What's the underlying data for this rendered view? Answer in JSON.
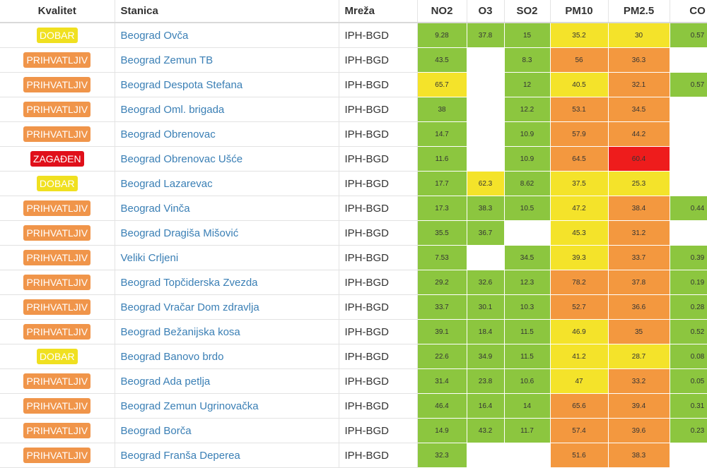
{
  "headers": {
    "quality": "Kvalitet",
    "station": "Stanica",
    "network": "Mreža",
    "no2": "NO2",
    "o3": "O3",
    "so2": "SO2",
    "pm10": "PM10",
    "pm25": "PM2.5",
    "co": "CO"
  },
  "colors": {
    "green": "#8cc63f",
    "yellow": "#f4e32a",
    "orange": "#f3983f",
    "red": "#ee1c1c",
    "badge_dobar": "#f0e020",
    "badge_prihvatljiv": "#f0954a",
    "badge_zagaden": "#e0101a",
    "link": "#3a7fb5"
  },
  "rows": [
    {
      "quality": "DOBAR",
      "quality_level": "dobar",
      "station": "Beograd Ovča",
      "network": "IPH-BGD",
      "no2": {
        "v": "9.28",
        "c": "green"
      },
      "o3": {
        "v": "37.8",
        "c": "green"
      },
      "so2": {
        "v": "15",
        "c": "green"
      },
      "pm10": {
        "v": "35.2",
        "c": "yellow"
      },
      "pm25": {
        "v": "30",
        "c": "yellow"
      },
      "co": {
        "v": "0.57",
        "c": "green"
      }
    },
    {
      "quality": "PRIHVATLJIV",
      "quality_level": "prihvatljiv",
      "station": "Beograd Zemun TB",
      "network": "IPH-BGD",
      "no2": {
        "v": "43.5",
        "c": "green"
      },
      "o3": {
        "v": "",
        "c": "none"
      },
      "so2": {
        "v": "8.3",
        "c": "green"
      },
      "pm10": {
        "v": "56",
        "c": "orange"
      },
      "pm25": {
        "v": "36.3",
        "c": "orange"
      },
      "co": {
        "v": "",
        "c": "none"
      }
    },
    {
      "quality": "PRIHVATLJIV",
      "quality_level": "prihvatljiv",
      "station": "Beograd Despota Stefana",
      "network": "IPH-BGD",
      "no2": {
        "v": "65.7",
        "c": "yellow"
      },
      "o3": {
        "v": "",
        "c": "none"
      },
      "so2": {
        "v": "12",
        "c": "green"
      },
      "pm10": {
        "v": "40.5",
        "c": "yellow"
      },
      "pm25": {
        "v": "32.1",
        "c": "orange"
      },
      "co": {
        "v": "0.57",
        "c": "green"
      }
    },
    {
      "quality": "PRIHVATLJIV",
      "quality_level": "prihvatljiv",
      "station": "Beograd Oml. brigada",
      "network": "IPH-BGD",
      "no2": {
        "v": "38",
        "c": "green"
      },
      "o3": {
        "v": "",
        "c": "none"
      },
      "so2": {
        "v": "12.2",
        "c": "green"
      },
      "pm10": {
        "v": "53.1",
        "c": "orange"
      },
      "pm25": {
        "v": "34.5",
        "c": "orange"
      },
      "co": {
        "v": "",
        "c": "none"
      }
    },
    {
      "quality": "PRIHVATLJIV",
      "quality_level": "prihvatljiv",
      "station": "Beograd Obrenovac",
      "network": "IPH-BGD",
      "no2": {
        "v": "14.7",
        "c": "green"
      },
      "o3": {
        "v": "",
        "c": "none"
      },
      "so2": {
        "v": "10.9",
        "c": "green"
      },
      "pm10": {
        "v": "57.9",
        "c": "orange"
      },
      "pm25": {
        "v": "44.2",
        "c": "orange"
      },
      "co": {
        "v": "",
        "c": "none"
      }
    },
    {
      "quality": "ZAGAĐEN",
      "quality_level": "zagaden",
      "station": "Beograd Obrenovac Ušće",
      "network": "IPH-BGD",
      "no2": {
        "v": "11.6",
        "c": "green"
      },
      "o3": {
        "v": "",
        "c": "none"
      },
      "so2": {
        "v": "10.9",
        "c": "green"
      },
      "pm10": {
        "v": "64.5",
        "c": "orange"
      },
      "pm25": {
        "v": "60.4",
        "c": "red"
      },
      "co": {
        "v": "",
        "c": "none"
      }
    },
    {
      "quality": "DOBAR",
      "quality_level": "dobar",
      "station": "Beograd Lazarevac",
      "network": "IPH-BGD",
      "no2": {
        "v": "17.7",
        "c": "green"
      },
      "o3": {
        "v": "62.3",
        "c": "yellow"
      },
      "so2": {
        "v": "8.62",
        "c": "green"
      },
      "pm10": {
        "v": "37.5",
        "c": "yellow"
      },
      "pm25": {
        "v": "25.3",
        "c": "yellow"
      },
      "co": {
        "v": "",
        "c": "none"
      }
    },
    {
      "quality": "PRIHVATLJIV",
      "quality_level": "prihvatljiv",
      "station": "Beograd Vinča",
      "network": "IPH-BGD",
      "no2": {
        "v": "17.3",
        "c": "green"
      },
      "o3": {
        "v": "38.3",
        "c": "green"
      },
      "so2": {
        "v": "10.5",
        "c": "green"
      },
      "pm10": {
        "v": "47.2",
        "c": "yellow"
      },
      "pm25": {
        "v": "38.4",
        "c": "orange"
      },
      "co": {
        "v": "0.44",
        "c": "green"
      }
    },
    {
      "quality": "PRIHVATLJIV",
      "quality_level": "prihvatljiv",
      "station": "Beograd Dragiša Mišović",
      "network": "IPH-BGD",
      "no2": {
        "v": "35.5",
        "c": "green"
      },
      "o3": {
        "v": "36.7",
        "c": "green"
      },
      "so2": {
        "v": "",
        "c": "none"
      },
      "pm10": {
        "v": "45.3",
        "c": "yellow"
      },
      "pm25": {
        "v": "31.2",
        "c": "orange"
      },
      "co": {
        "v": "",
        "c": "none"
      }
    },
    {
      "quality": "PRIHVATLJIV",
      "quality_level": "prihvatljiv",
      "station": "Veliki Crljeni",
      "network": "IPH-BGD",
      "no2": {
        "v": "7.53",
        "c": "green"
      },
      "o3": {
        "v": "",
        "c": "none"
      },
      "so2": {
        "v": "34.5",
        "c": "green"
      },
      "pm10": {
        "v": "39.3",
        "c": "yellow"
      },
      "pm25": {
        "v": "33.7",
        "c": "orange"
      },
      "co": {
        "v": "0.39",
        "c": "green"
      }
    },
    {
      "quality": "PRIHVATLJIV",
      "quality_level": "prihvatljiv",
      "station": "Beograd Topčiderska Zvezda",
      "network": "IPH-BGD",
      "no2": {
        "v": "29.2",
        "c": "green"
      },
      "o3": {
        "v": "32.6",
        "c": "green"
      },
      "so2": {
        "v": "12.3",
        "c": "green"
      },
      "pm10": {
        "v": "78.2",
        "c": "orange"
      },
      "pm25": {
        "v": "37.8",
        "c": "orange"
      },
      "co": {
        "v": "0.19",
        "c": "green"
      }
    },
    {
      "quality": "PRIHVATLJIV",
      "quality_level": "prihvatljiv",
      "station": "Beograd Vračar Dom zdravlja",
      "network": "IPH-BGD",
      "no2": {
        "v": "33.7",
        "c": "green"
      },
      "o3": {
        "v": "30.1",
        "c": "green"
      },
      "so2": {
        "v": "10.3",
        "c": "green"
      },
      "pm10": {
        "v": "52.7",
        "c": "orange"
      },
      "pm25": {
        "v": "36.6",
        "c": "orange"
      },
      "co": {
        "v": "0.28",
        "c": "green"
      }
    },
    {
      "quality": "PRIHVATLJIV",
      "quality_level": "prihvatljiv",
      "station": "Beograd Bežanijska kosa",
      "network": "IPH-BGD",
      "no2": {
        "v": "39.1",
        "c": "green"
      },
      "o3": {
        "v": "18.4",
        "c": "green"
      },
      "so2": {
        "v": "11.5",
        "c": "green"
      },
      "pm10": {
        "v": "46.9",
        "c": "yellow"
      },
      "pm25": {
        "v": "35",
        "c": "orange"
      },
      "co": {
        "v": "0.52",
        "c": "green"
      }
    },
    {
      "quality": "DOBAR",
      "quality_level": "dobar",
      "station": "Beograd Banovo brdo",
      "network": "IPH-BGD",
      "no2": {
        "v": "22.6",
        "c": "green"
      },
      "o3": {
        "v": "34.9",
        "c": "green"
      },
      "so2": {
        "v": "11.5",
        "c": "green"
      },
      "pm10": {
        "v": "41.2",
        "c": "yellow"
      },
      "pm25": {
        "v": "28.7",
        "c": "yellow"
      },
      "co": {
        "v": "0.08",
        "c": "green"
      }
    },
    {
      "quality": "PRIHVATLJIV",
      "quality_level": "prihvatljiv",
      "station": "Beograd Ada petlja",
      "network": "IPH-BGD",
      "no2": {
        "v": "31.4",
        "c": "green"
      },
      "o3": {
        "v": "23.8",
        "c": "green"
      },
      "so2": {
        "v": "10.6",
        "c": "green"
      },
      "pm10": {
        "v": "47",
        "c": "yellow"
      },
      "pm25": {
        "v": "33.2",
        "c": "orange"
      },
      "co": {
        "v": "0.05",
        "c": "green"
      }
    },
    {
      "quality": "PRIHVATLJIV",
      "quality_level": "prihvatljiv",
      "station": "Beograd Zemun Ugrinovačka",
      "network": "IPH-BGD",
      "no2": {
        "v": "46.4",
        "c": "green"
      },
      "o3": {
        "v": "16.4",
        "c": "green"
      },
      "so2": {
        "v": "14",
        "c": "green"
      },
      "pm10": {
        "v": "65.6",
        "c": "orange"
      },
      "pm25": {
        "v": "39.4",
        "c": "orange"
      },
      "co": {
        "v": "0.31",
        "c": "green"
      }
    },
    {
      "quality": "PRIHVATLJIV",
      "quality_level": "prihvatljiv",
      "station": "Beograd Borča",
      "network": "IPH-BGD",
      "no2": {
        "v": "14.9",
        "c": "green"
      },
      "o3": {
        "v": "43.2",
        "c": "green"
      },
      "so2": {
        "v": "11.7",
        "c": "green"
      },
      "pm10": {
        "v": "57.4",
        "c": "orange"
      },
      "pm25": {
        "v": "39.6",
        "c": "orange"
      },
      "co": {
        "v": "0.23",
        "c": "green"
      }
    },
    {
      "quality": "PRIHVATLJIV",
      "quality_level": "prihvatljiv",
      "station": "Beograd Franša Deperea",
      "network": "IPH-BGD",
      "no2": {
        "v": "32.3",
        "c": "green"
      },
      "o3": {
        "v": "",
        "c": "none"
      },
      "so2": {
        "v": "",
        "c": "none"
      },
      "pm10": {
        "v": "51.6",
        "c": "orange"
      },
      "pm25": {
        "v": "38.3",
        "c": "orange"
      },
      "co": {
        "v": "",
        "c": "none"
      }
    }
  ]
}
